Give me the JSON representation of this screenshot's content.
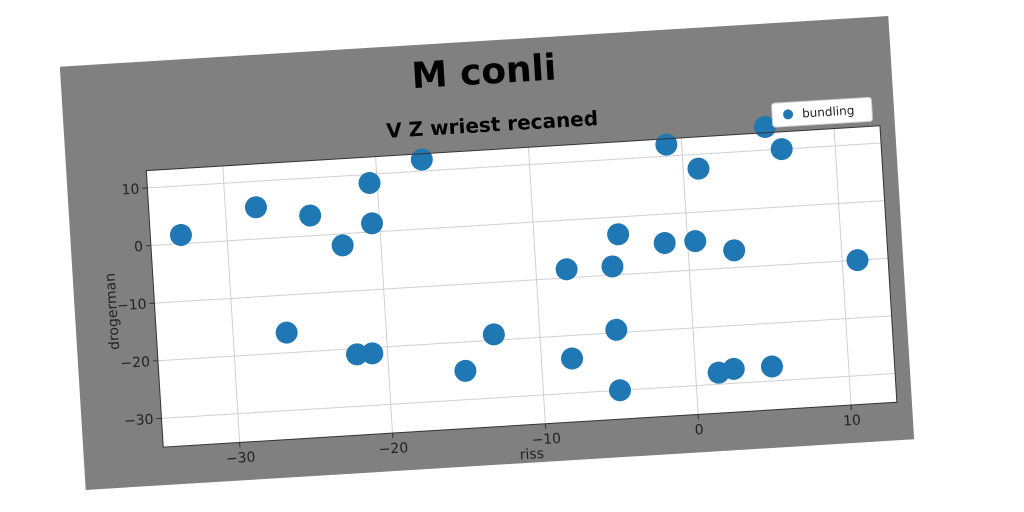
{
  "chart_data": {
    "type": "scatter",
    "title": "M conli",
    "subtitle": "V Z wriest recaned",
    "xlabel": "riss",
    "ylabel": "drogerman",
    "xlim": [
      -35,
      13
    ],
    "ylim": [
      -35,
      13
    ],
    "x_ticks": [
      -30,
      -20,
      -10,
      0,
      10
    ],
    "y_ticks": [
      10,
      0,
      -10,
      -20,
      -30
    ],
    "x_tick_labels": [
      "−30",
      "−20",
      "−10",
      "0",
      "10"
    ],
    "y_tick_labels": [
      "10",
      "0",
      "−10",
      "−20",
      "−30"
    ],
    "grid": true,
    "legend_position": "top-right",
    "series": [
      {
        "name": "bundling",
        "color": "#1f77b4",
        "x": [
          -33,
          -28,
          -24.5,
          -22.5,
          -20.5,
          -20.5,
          -17,
          -26.5,
          -22,
          -21,
          -15,
          -13,
          -8,
          -5,
          -5,
          -5,
          -4.5,
          -8,
          -1.5,
          0.5,
          3,
          -1,
          1,
          5.5,
          6.5,
          11,
          5,
          2.5,
          1.5
        ],
        "y": [
          1.5,
          5.5,
          3.5,
          -2,
          8.5,
          1.5,
          12,
          -16.5,
          -21,
          -21,
          -25,
          -19,
          -24,
          -30,
          -19.5,
          -8.5,
          -3,
          -8.5,
          -5,
          -5,
          -7,
          12,
          7.5,
          14,
          10,
          -10,
          -27.5,
          -27.5,
          -28
        ]
      }
    ]
  }
}
